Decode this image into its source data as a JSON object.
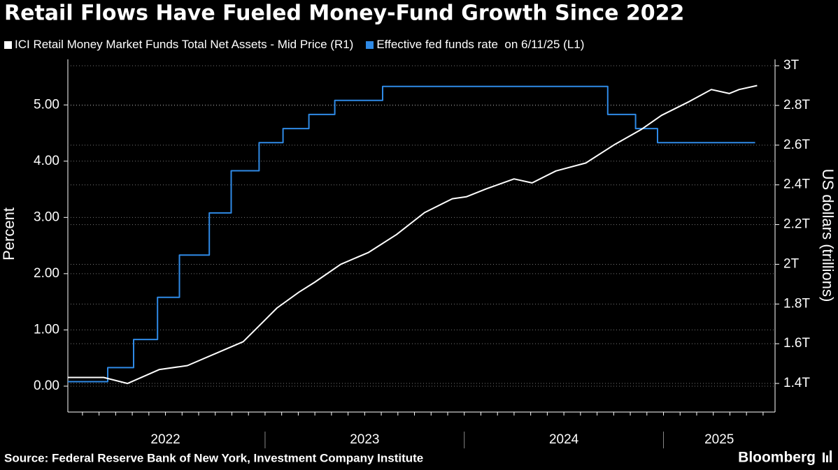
{
  "chart_data": {
    "type": "line",
    "title": "Retail Flows Have Fueled Money-Fund Growth Since 2022",
    "y_label": "Percent",
    "y2_label": "US dollars (trillions)",
    "source": "Source: Federal Reserve Bank of New York, Investment Company Institute",
    "brand": "Bloomberg",
    "xlim": [
      2022.01,
      2025.56
    ],
    "ylim": [
      -0.46,
      5.81
    ],
    "y2lim": [
      1.256,
      3.032
    ],
    "xticks": [
      {
        "value": 2022.5,
        "label": "2022"
      },
      {
        "value": 2023.5,
        "label": "2023"
      },
      {
        "value": 2024.5,
        "label": "2024"
      },
      {
        "value": 2025.28,
        "label": "2025"
      }
    ],
    "x_separators": [
      2023,
      2024,
      2025
    ],
    "yticks": [
      {
        "value": 0,
        "label": "0.00"
      },
      {
        "value": 1,
        "label": "1.00"
      },
      {
        "value": 2,
        "label": "2.00"
      },
      {
        "value": 3,
        "label": "3.00"
      },
      {
        "value": 4,
        "label": "4.00"
      },
      {
        "value": 5,
        "label": "5.00"
      }
    ],
    "y2ticks": [
      {
        "value": 1.4,
        "label": "1.4T"
      },
      {
        "value": 1.6,
        "label": "1.6T"
      },
      {
        "value": 1.8,
        "label": "1.8T"
      },
      {
        "value": 2,
        "label": "2T"
      },
      {
        "value": 2.2,
        "label": "2.2T"
      },
      {
        "value": 2.4,
        "label": "2.4T"
      },
      {
        "value": 2.6,
        "label": "2.6T"
      },
      {
        "value": 2.8,
        "label": "2.8T"
      },
      {
        "value": 3,
        "label": "3T"
      }
    ],
    "grid": true,
    "series": [
      {
        "name": "ICI Retail Money Market Funds Total Net Assets - Mid Price (R1)",
        "color": "#ffffff",
        "axis": "y2",
        "x": [
          2022.01,
          2022.19,
          2022.31,
          2022.47,
          2022.61,
          2022.75,
          2022.89,
          2022.99,
          2023.06,
          2023.17,
          2023.25,
          2023.38,
          2023.52,
          2023.66,
          2023.8,
          2023.94,
          2024.01,
          2024.11,
          2024.25,
          2024.34,
          2024.46,
          2024.61,
          2024.75,
          2024.89,
          2024.99,
          2025.13,
          2025.24,
          2025.33,
          2025.38,
          2025.47
        ],
        "values": [
          1.43,
          1.43,
          1.4,
          1.47,
          1.49,
          1.55,
          1.61,
          1.71,
          1.78,
          1.86,
          1.91,
          2.0,
          2.06,
          2.15,
          2.26,
          2.33,
          2.34,
          2.38,
          2.43,
          2.41,
          2.47,
          2.51,
          2.6,
          2.68,
          2.75,
          2.82,
          2.88,
          2.86,
          2.88,
          2.9
        ]
      },
      {
        "name": "Effective fed funds rate  on 6/11/25 (L1)",
        "color": "#2f8ae6",
        "x": [
          2022.01,
          2022.21,
          2022.21,
          2022.34,
          2022.34,
          2022.46,
          2022.46,
          2022.57,
          2022.57,
          2022.72,
          2022.72,
          2022.83,
          2022.83,
          2022.97,
          2022.97,
          2023.09,
          2023.09,
          2023.22,
          2023.22,
          2023.35,
          2023.35,
          2023.59,
          2023.59,
          2024.72,
          2024.72,
          2024.86,
          2024.86,
          2024.97,
          2024.97,
          2025.46
        ],
        "values": [
          0.08,
          0.08,
          0.33,
          0.33,
          0.83,
          0.83,
          1.58,
          1.58,
          2.33,
          2.33,
          3.08,
          3.08,
          3.83,
          3.83,
          4.33,
          4.33,
          4.58,
          4.58,
          4.83,
          4.83,
          5.08,
          5.08,
          5.33,
          5.33,
          4.83,
          4.83,
          4.58,
          4.58,
          4.33,
          4.33
        ]
      }
    ]
  }
}
